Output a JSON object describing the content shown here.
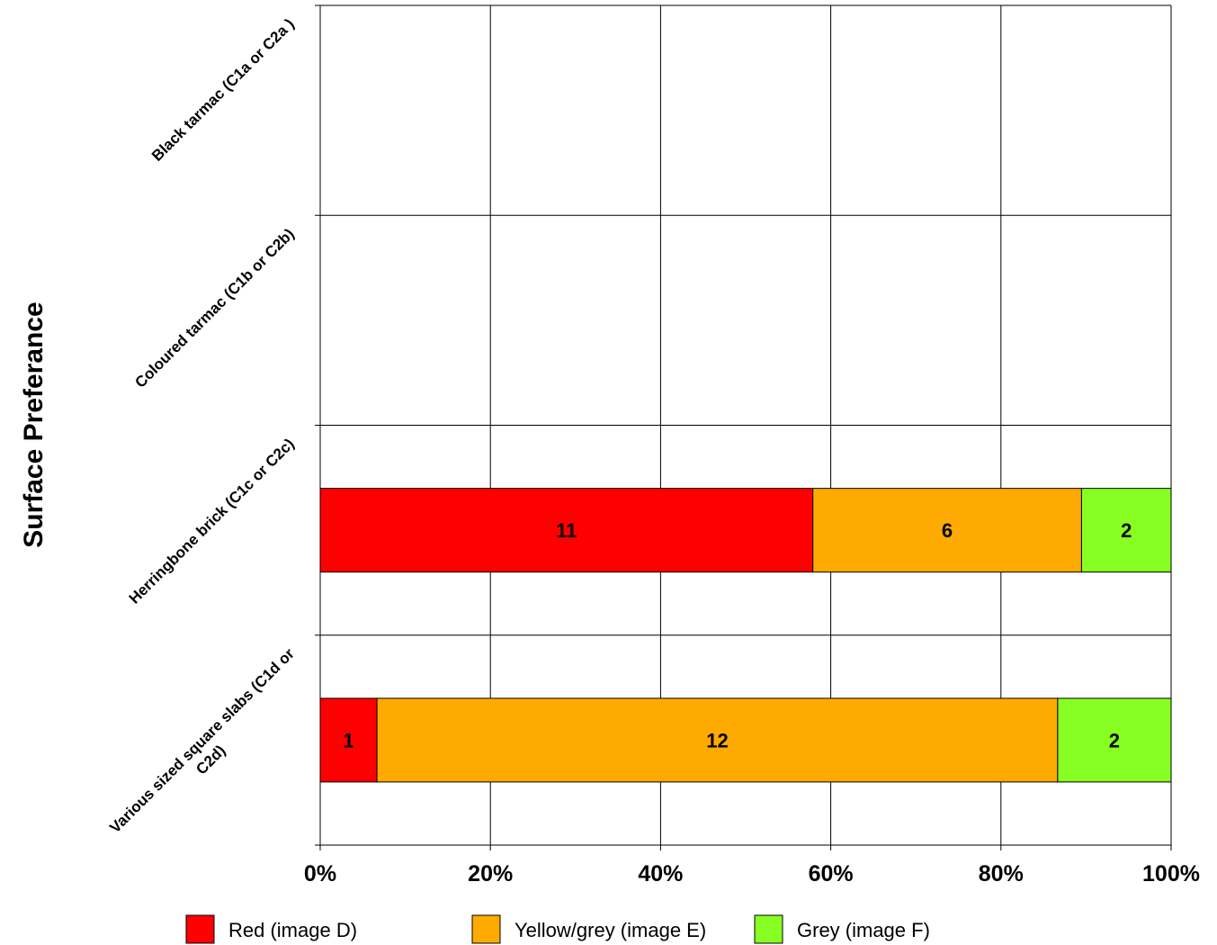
{
  "chart_data": {
    "type": "bar",
    "orientation": "horizontal",
    "stacked": "percent",
    "title": "",
    "xlabel": "",
    "ylabel": "Surface Preferance",
    "xlim": [
      0,
      100
    ],
    "x_ticks": [
      "0%",
      "20%",
      "40%",
      "60%",
      "80%",
      "100%"
    ],
    "grid": true,
    "legend_position": "bottom",
    "categories": [
      "Black tarmac (C1a or C2a )",
      "Coloured tarmac (C1b or C2b)",
      "Herringbone brick (C1c or C2c)",
      "Various sized square slabs (C1d or C2d)"
    ],
    "series": [
      {
        "name": "Red  (image D)",
        "color": "#ff0000",
        "values": [
          0,
          0,
          11,
          1
        ]
      },
      {
        "name": "Yellow/grey (image E)",
        "color": "#ffaa00",
        "values": [
          0,
          0,
          6,
          12
        ]
      },
      {
        "name": "Grey (image F)",
        "color": "#88ff22",
        "values": [
          0,
          0,
          2,
          2
        ]
      }
    ]
  }
}
